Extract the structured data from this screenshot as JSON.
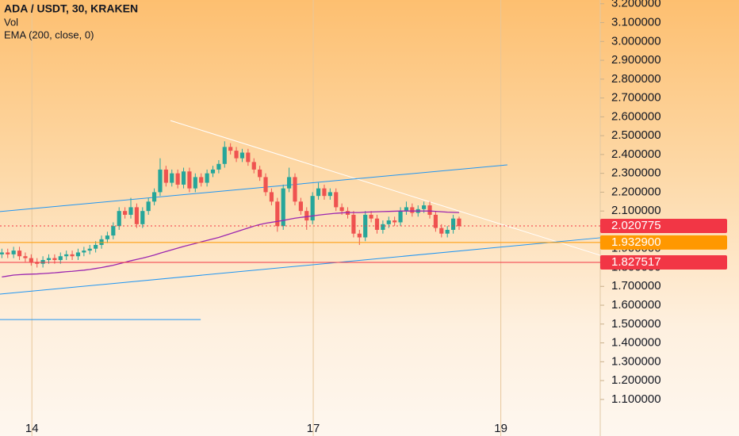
{
  "chart_data": {
    "type": "candlestick",
    "title": "ADA / USDT, 30, KRAKEN",
    "subtitles": [
      "Vol",
      "EMA (200, close, 0)"
    ],
    "up_color": "#26a69a",
    "down_color": "#ef5350",
    "xlim": [
      13.66,
      20.06
    ],
    "xticks": [
      14,
      17,
      19
    ],
    "xgrid": true,
    "ylim": [
      0.99,
      3.22
    ],
    "yticks": [
      {
        "value": 1.1,
        "label": "1.100000"
      },
      {
        "value": 1.2,
        "label": "1.200000"
      },
      {
        "value": 1.3,
        "label": "1.300000"
      },
      {
        "value": 1.4,
        "label": "1.400000"
      },
      {
        "value": 1.5,
        "label": "1.500000"
      },
      {
        "value": 1.6,
        "label": "1.600000"
      },
      {
        "value": 1.7,
        "label": "1.700000"
      },
      {
        "value": 1.8,
        "label": "1.800000"
      },
      {
        "value": 1.9,
        "label": "1.900000"
      },
      {
        "value": 2.0,
        "label": "2.000000"
      },
      {
        "value": 2.1,
        "label": "2.100000"
      },
      {
        "value": 2.2,
        "label": "2.200000"
      },
      {
        "value": 2.3,
        "label": "2.300000"
      },
      {
        "value": 2.4,
        "label": "2.400000"
      },
      {
        "value": 2.5,
        "label": "2.500000"
      },
      {
        "value": 2.6,
        "label": "2.600000"
      },
      {
        "value": 2.7,
        "label": "2.700000"
      },
      {
        "value": 2.8,
        "label": "2.800000"
      },
      {
        "value": 2.9,
        "label": "2.900000"
      },
      {
        "value": 3.0,
        "label": "3.000000"
      },
      {
        "value": 3.1,
        "label": "3.100000"
      },
      {
        "value": 3.2,
        "label": "3.200000"
      }
    ],
    "x": [
      13.68,
      13.7425,
      13.805,
      13.8675,
      13.93,
      13.9925,
      14.055,
      14.1175,
      14.18,
      14.2425,
      14.305,
      14.3675,
      14.43,
      14.4925,
      14.555,
      14.6175,
      14.68,
      14.7425,
      14.805,
      14.8675,
      14.93,
      14.9925,
      15.055,
      15.1175,
      15.18,
      15.2425,
      15.305,
      15.3675,
      15.43,
      15.4925,
      15.555,
      15.6175,
      15.68,
      15.7425,
      15.805,
      15.8675,
      15.93,
      15.9925,
      16.055,
      16.1175,
      16.18,
      16.2425,
      16.305,
      16.3675,
      16.43,
      16.4925,
      16.555,
      16.6175,
      16.68,
      16.7425,
      16.805,
      16.8675,
      16.93,
      16.9925,
      17.055,
      17.1175,
      17.18,
      17.2425,
      17.305,
      17.3675,
      17.43,
      17.4925,
      17.555,
      17.6175,
      17.68,
      17.7425,
      17.805,
      17.8675,
      17.93,
      17.9925,
      18.055,
      18.1175,
      18.18,
      18.2425,
      18.305,
      18.3675,
      18.43,
      18.4925,
      18.555
    ],
    "open": [
      1.87,
      1.88,
      1.87,
      1.89,
      1.86,
      1.85,
      1.83,
      1.82,
      1.84,
      1.85,
      1.84,
      1.86,
      1.87,
      1.86,
      1.88,
      1.89,
      1.9,
      1.92,
      1.95,
      1.97,
      2.02,
      2.1,
      2.08,
      2.12,
      2.03,
      2.1,
      2.15,
      2.2,
      2.32,
      2.25,
      2.3,
      2.24,
      2.31,
      2.22,
      2.28,
      2.25,
      2.3,
      2.32,
      2.35,
      2.44,
      2.42,
      2.38,
      2.41,
      2.36,
      2.32,
      2.28,
      2.2,
      2.15,
      2.02,
      2.22,
      2.28,
      2.15,
      2.1,
      2.05,
      2.18,
      2.22,
      2.18,
      2.2,
      2.12,
      2.1,
      2.08,
      1.98,
      1.96,
      2.08,
      2.06,
      2.0,
      2.03,
      2.05,
      2.04,
      2.1,
      2.12,
      2.09,
      2.11,
      2.13,
      2.08,
      2.01,
      1.98,
      2.0,
      2.06
    ],
    "high": [
      1.9,
      1.9,
      1.91,
      1.91,
      1.88,
      1.87,
      1.85,
      1.86,
      1.87,
      1.87,
      1.88,
      1.89,
      1.89,
      1.9,
      1.91,
      1.92,
      1.94,
      1.97,
      1.99,
      2.04,
      2.12,
      2.12,
      2.17,
      2.14,
      2.12,
      2.17,
      2.22,
      2.38,
      2.34,
      2.32,
      2.32,
      2.33,
      2.33,
      2.3,
      2.3,
      2.32,
      2.34,
      2.37,
      2.47,
      2.46,
      2.44,
      2.43,
      2.43,
      2.38,
      2.34,
      2.3,
      2.22,
      2.17,
      2.24,
      2.33,
      2.3,
      2.17,
      2.12,
      2.2,
      2.25,
      2.24,
      2.22,
      2.22,
      2.14,
      2.12,
      2.1,
      2.0,
      2.1,
      2.1,
      2.08,
      2.05,
      2.07,
      2.07,
      2.12,
      2.15,
      2.14,
      2.13,
      2.15,
      2.15,
      2.1,
      2.03,
      2.02,
      2.08,
      2.07
    ],
    "low": [
      1.85,
      1.85,
      1.85,
      1.84,
      1.83,
      1.81,
      1.8,
      1.8,
      1.82,
      1.82,
      1.82,
      1.84,
      1.84,
      1.84,
      1.86,
      1.87,
      1.88,
      1.9,
      1.93,
      1.95,
      2.0,
      2.06,
      2.06,
      2.01,
      2.01,
      2.08,
      2.13,
      2.18,
      2.23,
      2.23,
      2.22,
      2.22,
      2.2,
      2.2,
      2.23,
      2.23,
      2.28,
      2.3,
      2.33,
      2.4,
      2.36,
      2.36,
      2.34,
      2.3,
      2.26,
      2.18,
      2.13,
      1.99,
      2.0,
      2.2,
      2.13,
      2.08,
      2.0,
      2.03,
      2.16,
      2.16,
      2.16,
      2.1,
      2.08,
      2.06,
      1.96,
      1.92,
      1.94,
      2.04,
      1.98,
      1.98,
      2.01,
      2.02,
      2.02,
      2.08,
      2.07,
      2.07,
      2.09,
      2.06,
      1.99,
      1.96,
      1.96,
      1.98,
      2.0
    ],
    "close": [
      1.88,
      1.87,
      1.89,
      1.86,
      1.85,
      1.83,
      1.82,
      1.84,
      1.85,
      1.84,
      1.86,
      1.87,
      1.86,
      1.88,
      1.89,
      1.9,
      1.92,
      1.95,
      1.97,
      2.02,
      2.1,
      2.08,
      2.12,
      2.03,
      2.1,
      2.15,
      2.2,
      2.32,
      2.25,
      2.3,
      2.24,
      2.31,
      2.22,
      2.28,
      2.25,
      2.3,
      2.32,
      2.35,
      2.44,
      2.42,
      2.38,
      2.41,
      2.36,
      2.32,
      2.28,
      2.2,
      2.15,
      2.02,
      2.22,
      2.28,
      2.15,
      2.1,
      2.05,
      2.18,
      2.22,
      2.18,
      2.2,
      2.12,
      2.1,
      2.08,
      1.98,
      1.96,
      2.08,
      2.06,
      2.0,
      2.03,
      2.05,
      2.04,
      2.1,
      2.12,
      2.09,
      2.11,
      2.13,
      2.08,
      2.01,
      1.98,
      2.0,
      2.06,
      2.02
    ],
    "ema": {
      "color": "#9c27b0",
      "values": [
        1.75,
        1.755,
        1.76,
        1.762,
        1.764,
        1.765,
        1.766,
        1.768,
        1.77,
        1.772,
        1.775,
        1.778,
        1.78,
        1.783,
        1.786,
        1.79,
        1.795,
        1.8,
        1.806,
        1.812,
        1.82,
        1.828,
        1.836,
        1.843,
        1.85,
        1.858,
        1.866,
        1.876,
        1.885,
        1.894,
        1.903,
        1.912,
        1.92,
        1.928,
        1.936,
        1.944,
        1.952,
        1.96,
        1.97,
        1.98,
        1.99,
        2.0,
        2.01,
        2.02,
        2.028,
        2.035,
        2.04,
        2.045,
        2.05,
        2.056,
        2.062,
        2.066,
        2.07,
        2.074,
        2.078,
        2.082,
        2.085,
        2.088,
        2.09,
        2.092,
        2.092,
        2.092,
        2.094,
        2.095,
        2.096,
        2.097,
        2.098,
        2.099,
        2.1,
        2.1,
        2.1,
        2.1,
        2.1,
        2.1,
        2.098,
        2.096,
        2.094,
        2.093,
        2.092
      ]
    },
    "drawings": [
      {
        "color": "#ffffff",
        "x": [
          15.478,
          20.06
        ],
        "y": [
          2.58,
          1.865
        ]
      },
      {
        "color": "#2196f3",
        "x": [
          13.66,
          19.07
        ],
        "y": [
          2.097,
          2.345
        ]
      },
      {
        "color": "#2196f3",
        "x": [
          13.66,
          20.06
        ],
        "y": [
          1.659,
          1.958
        ]
      },
      {
        "color": "#2196f3",
        "x": [
          13.66,
          15.8
        ],
        "y": [
          1.524,
          1.524
        ]
      }
    ],
    "levels": [
      {
        "price": 2.020775,
        "color": "#f23645",
        "style": "dotted"
      },
      {
        "price": 1.9329,
        "label": "1.932900",
        "color": "#ff9800",
        "style": "solid"
      },
      {
        "price": 1.827517,
        "label": "1.827517",
        "color": "#f23645",
        "style": "solid"
      }
    ]
  }
}
